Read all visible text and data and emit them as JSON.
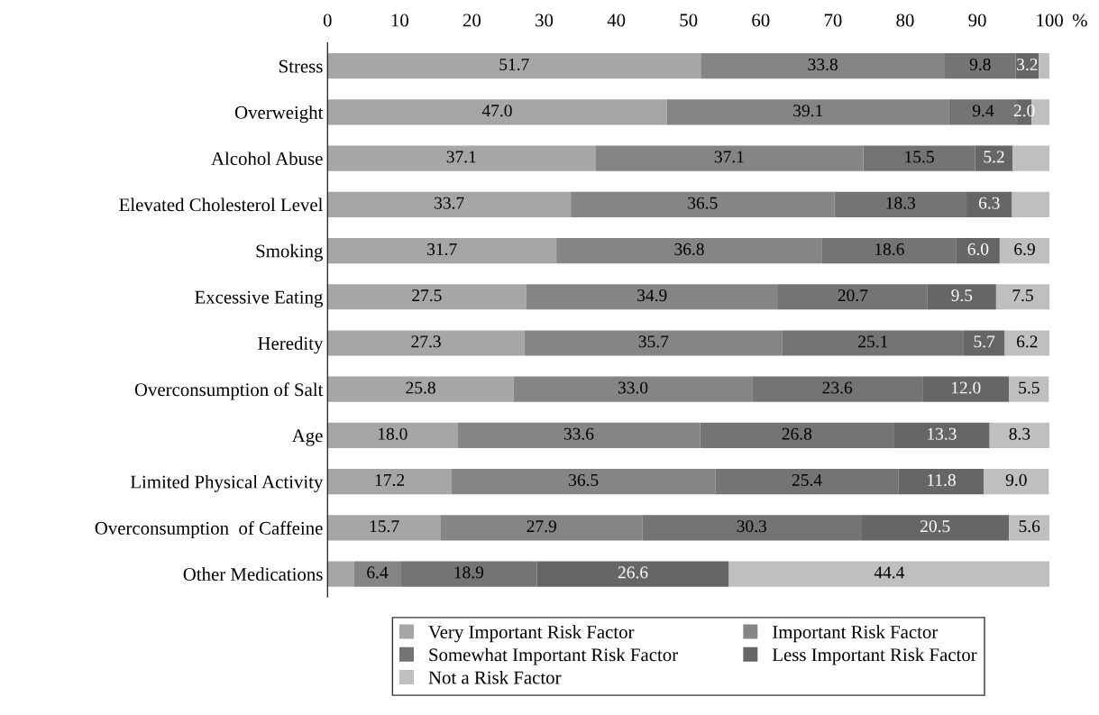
{
  "chart_data": {
    "type": "bar",
    "orientation": "horizontal",
    "stacked": true,
    "categories": [
      "Stress",
      "Overweight",
      "Alcohol Abuse",
      "Elevated Cholesterol Level",
      "Smoking",
      "Excessive Eating",
      "Heredity",
      "Overconsumption of Salt",
      "Age",
      "Limited Physical Activity",
      "Overconsumption  of Caffeine",
      "Other Medications"
    ],
    "series": [
      {
        "name": "Very Important Risk Factor",
        "color": "#a6a6a6",
        "values": [
          51.7,
          47.0,
          37.1,
          33.7,
          31.7,
          27.5,
          27.3,
          25.8,
          18.0,
          17.2,
          15.7,
          3.7
        ],
        "value_labels": [
          "51.7",
          "47.0",
          "37.1",
          "33.7",
          "31.7",
          "27.5",
          "27.3",
          "25.8",
          "18.0",
          "17.2",
          "15.7",
          null
        ]
      },
      {
        "name": "Important Risk Factor",
        "color": "#858585",
        "values": [
          33.8,
          39.1,
          37.1,
          36.5,
          36.8,
          34.9,
          35.7,
          33.0,
          33.6,
          36.5,
          27.9,
          6.4
        ],
        "value_labels": [
          "33.8",
          "39.1",
          "37.1",
          "36.5",
          "36.8",
          "34.9",
          "35.7",
          "33.0",
          "33.6",
          "36.5",
          "27.9",
          "6.4"
        ]
      },
      {
        "name": "Somewhat Important Risk Factor",
        "color": "#747474",
        "values": [
          9.8,
          9.4,
          15.5,
          18.3,
          18.6,
          20.7,
          25.1,
          23.6,
          26.8,
          25.4,
          30.3,
          18.9
        ],
        "value_labels": [
          "9.8",
          "9.4",
          "15.5",
          "18.3",
          "18.6",
          "20.7",
          "25.1",
          "23.6",
          "26.8",
          "25.4",
          "30.3",
          "18.9"
        ]
      },
      {
        "name": "Less Important Risk Factor",
        "color": "#666666",
        "values": [
          3.2,
          2.0,
          5.2,
          6.3,
          6.0,
          9.5,
          5.7,
          12.0,
          13.3,
          11.8,
          20.5,
          26.6
        ],
        "value_labels": [
          "3.2",
          "2.0",
          "5.2",
          "6.3",
          "6.0",
          "9.5",
          "5.7",
          "12.0",
          "13.3",
          "11.8",
          "20.5",
          "26.6"
        ]
      },
      {
        "name": "Not a Risk Factor",
        "color": "#bfbfbf",
        "values": [
          1.5,
          2.5,
          5.1,
          5.2,
          6.9,
          7.5,
          6.2,
          5.5,
          8.3,
          9.0,
          5.6,
          44.4
        ],
        "value_labels": [
          null,
          null,
          null,
          null,
          "6.9",
          "7.5",
          "6.2",
          "5.5",
          "8.3",
          "9.0",
          "5.6",
          "44.4"
        ]
      }
    ],
    "xlabel": "%",
    "xlim": [
      0,
      100
    ],
    "xticks": [
      0,
      10,
      20,
      30,
      40,
      50,
      60,
      70,
      80,
      90,
      100
    ],
    "grid": false,
    "legend": "bottom"
  }
}
